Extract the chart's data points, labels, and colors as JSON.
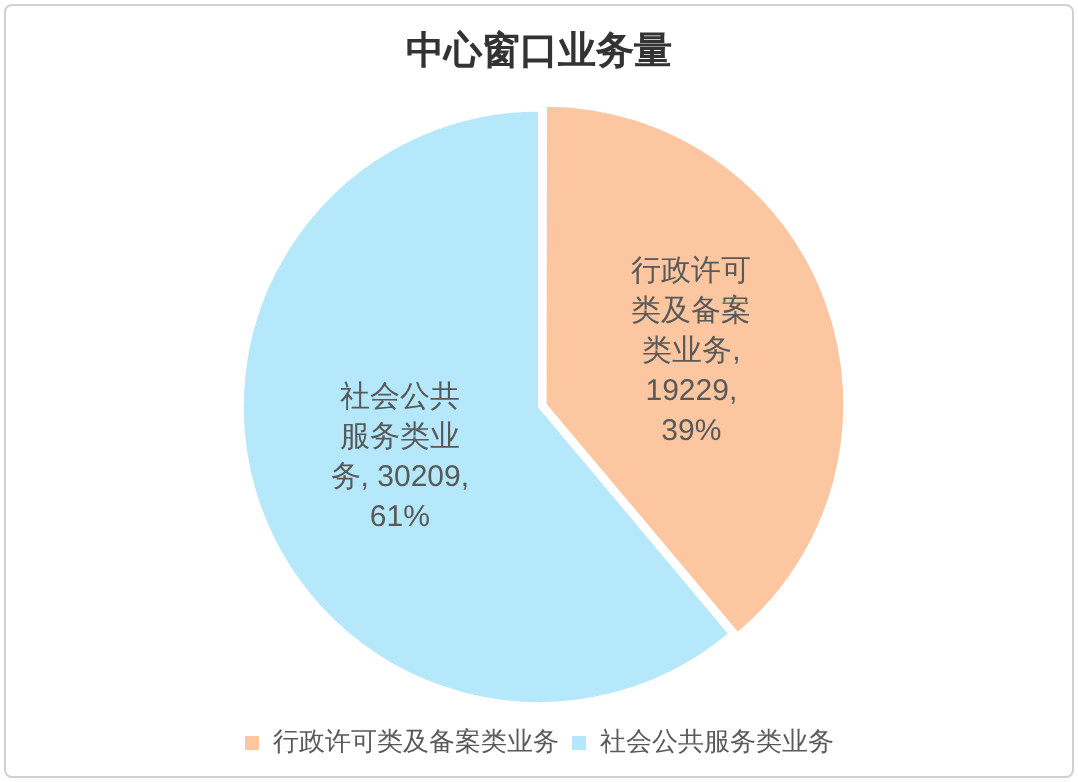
{
  "chart_data": {
    "type": "pie",
    "title": "中心窗口业务量",
    "categories": [
      "行政许可类及备案类业务",
      "社会公共服务类业务"
    ],
    "values": [
      19229,
      30209
    ],
    "colors": [
      "#fcc6a0",
      "#b5e8fa"
    ],
    "value_labels": [
      "行政许可类及备案类业务, 19229, 39%",
      "社会公共服务类业务, 30209, 61%"
    ],
    "legend": "bottom"
  }
}
